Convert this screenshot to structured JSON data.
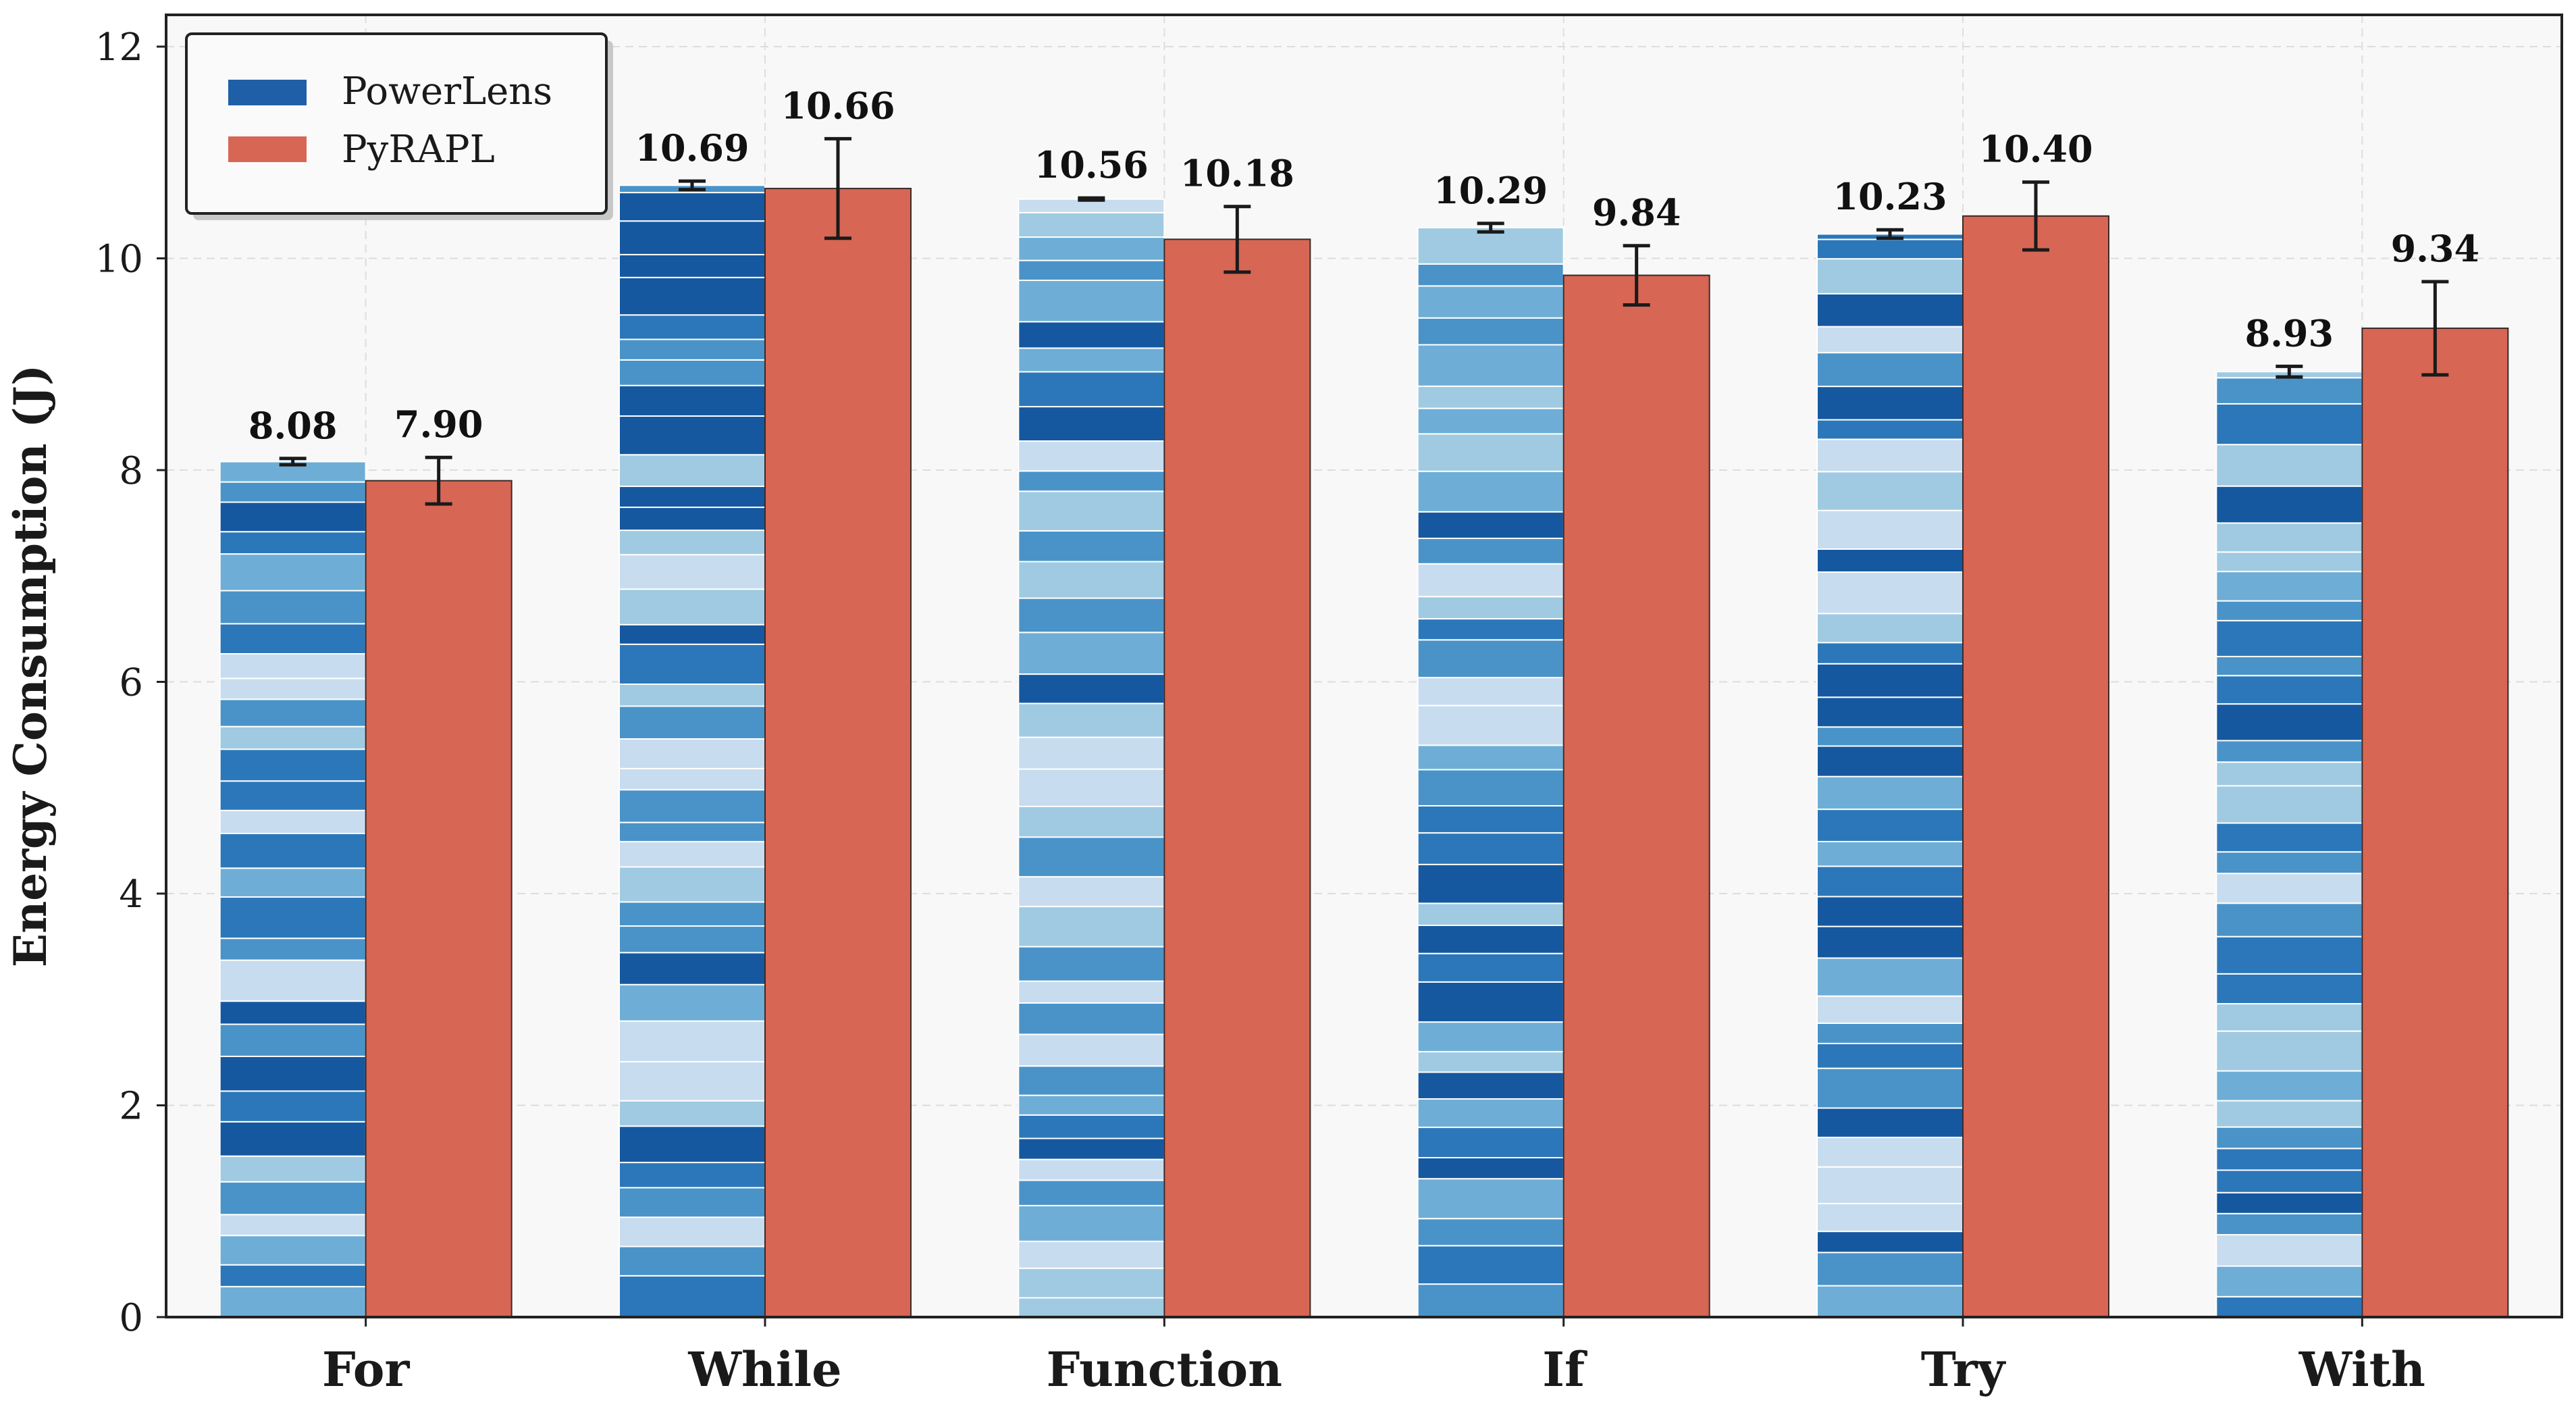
{
  "chart_data": {
    "type": "bar",
    "categories": [
      "For",
      "While",
      "Function",
      "If",
      "Try",
      "With"
    ],
    "ylabel": "Energy Consumption (J)",
    "ylim": [
      0,
      12.3
    ],
    "yticks": [
      0,
      2,
      4,
      6,
      8,
      10,
      12
    ],
    "grid": true,
    "legend_position": "top-left",
    "series": [
      {
        "name": "PowerLens",
        "values": [
          8.08,
          10.69,
          10.56,
          10.29,
          10.23,
          8.93
        ],
        "labels": [
          "8.08",
          "10.69",
          "10.56",
          "10.29",
          "10.23",
          "8.93"
        ],
        "errors": [
          0.03,
          0.04,
          0.01,
          0.04,
          0.04,
          0.05
        ],
        "color": "#1f5fa8",
        "style": "stacked segments in shades of blue"
      },
      {
        "name": "PyRAPL",
        "values": [
          7.9,
          10.66,
          10.18,
          9.84,
          10.4,
          9.34
        ],
        "labels": [
          "7.90",
          "10.66",
          "10.18",
          "9.84",
          "10.40",
          "9.34"
        ],
        "errors": [
          0.22,
          0.47,
          0.31,
          0.28,
          0.32,
          0.44
        ],
        "color": "#d76654"
      }
    ],
    "segment_palette": [
      "#1558a0",
      "#2c77b9",
      "#4a93c8",
      "#6eaed6",
      "#9fcae2",
      "#c8dcef"
    ]
  }
}
